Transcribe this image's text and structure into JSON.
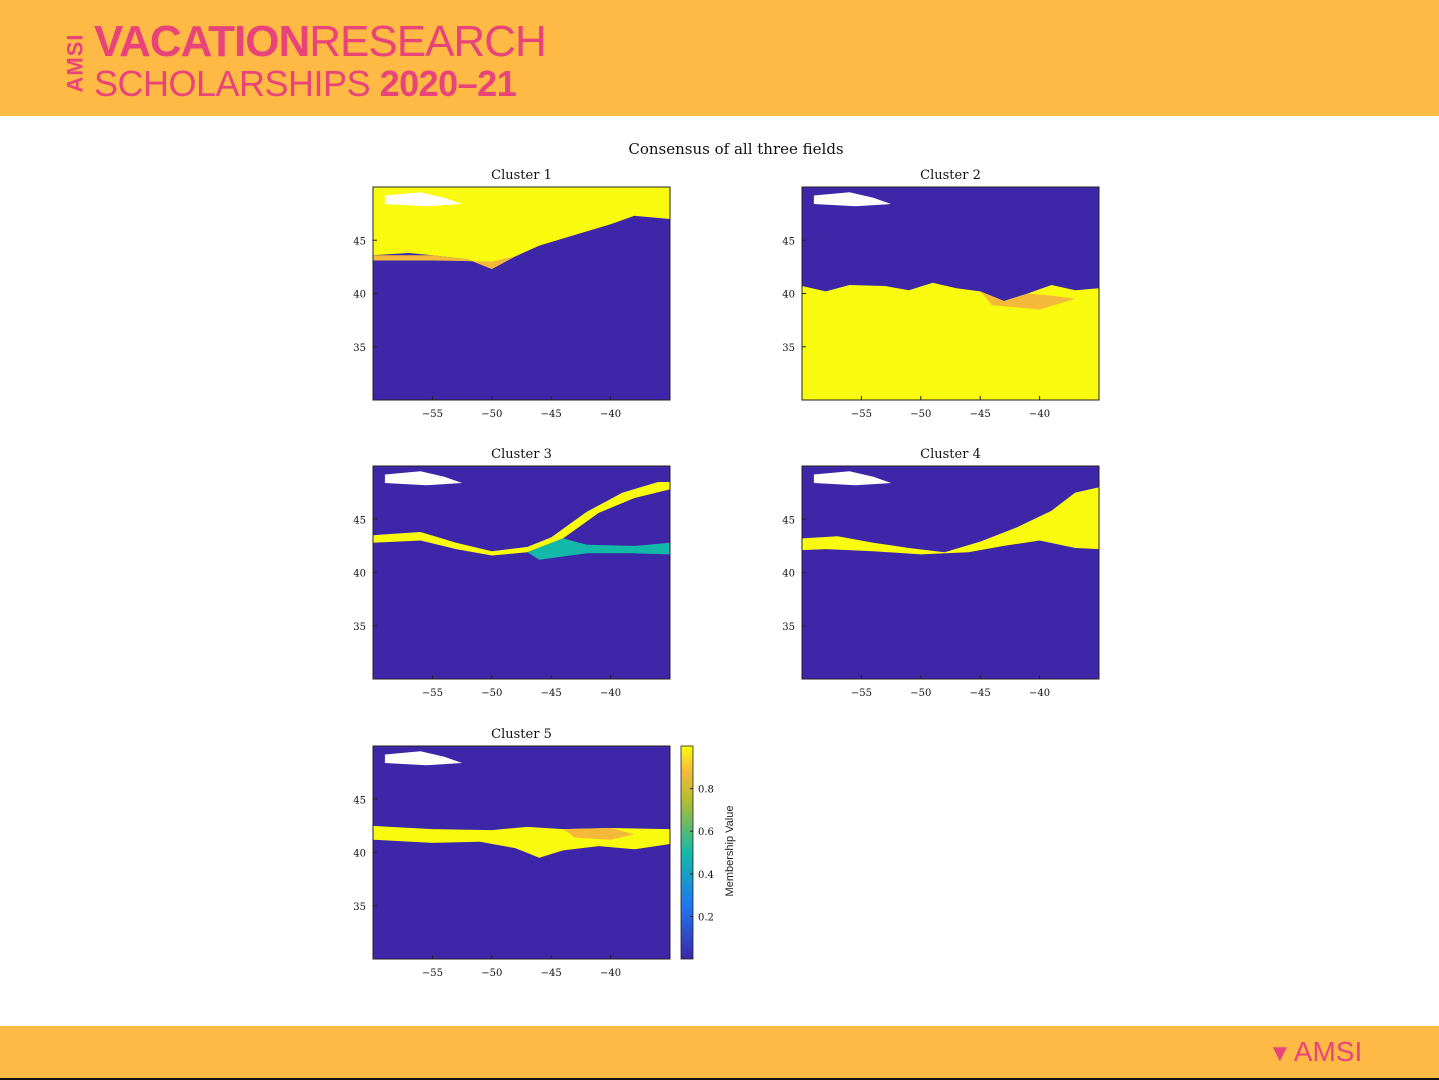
{
  "header": {
    "logo_vertical": "AMSI",
    "logo_line1_bold": "VACATION",
    "logo_line1_light": "RESEARCH",
    "logo_line2_light": "SCHOLARSHIPS ",
    "logo_line2_bold": "2020–21"
  },
  "footer": {
    "logo_text": "AMSI"
  },
  "colors": {
    "band": "#FFBA45",
    "brand": "#E8447A",
    "low": "#3E26A8",
    "high": "#F9FB0E"
  },
  "chart_data": {
    "type": "heatmap",
    "title": "Consensus of all three fields",
    "colorbar_label": "Membership Value",
    "colorbar_ticks": [
      "0.2",
      "0.4",
      "0.6",
      "0.8"
    ],
    "colorbar_range": [
      0,
      1
    ],
    "xlim": [
      -60,
      -35
    ],
    "ylim": [
      30,
      50
    ],
    "x_ticks": [
      "−55",
      "−50",
      "−45",
      "−40"
    ],
    "y_ticks": [
      "35",
      "40",
      "45"
    ],
    "panels": [
      {
        "title": "Cluster 1",
        "dominant_region": "north of ~43°N (high membership)"
      },
      {
        "title": "Cluster 2",
        "dominant_region": "south of ~40°N (high membership)"
      },
      {
        "title": "Cluster 3",
        "dominant_region": "narrow frontal band ~42–44°N"
      },
      {
        "title": "Cluster 4",
        "dominant_region": "band ~42–47°N, eastern side"
      },
      {
        "title": "Cluster 5",
        "dominant_region": "band ~40–42°N"
      }
    ]
  }
}
